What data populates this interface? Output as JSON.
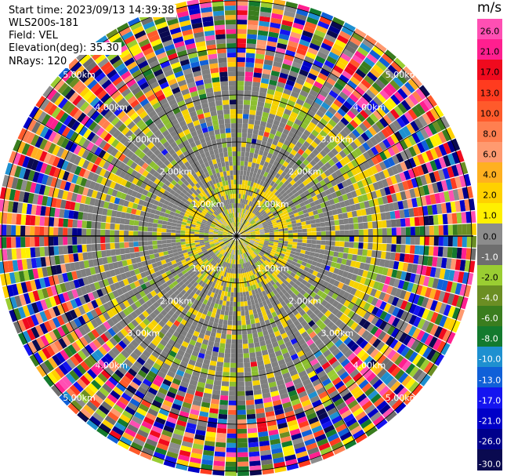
{
  "header": {
    "start_time": "Start time: 2023/09/13 14:39:38",
    "instrument": "WLS200s-181",
    "field": "Field: VEL",
    "elevation": "Elevation(deg): 35.30",
    "nrays": "NRays: 120"
  },
  "colorbar": {
    "unit": "m/s",
    "ticks": [
      "26.0",
      "21.0",
      "17.0",
      "13.0",
      "10.0",
      "8.0",
      "6.0",
      "4.0",
      "2.0",
      "1.0",
      "0.0",
      "-1.0",
      "-2.0",
      "-4.0",
      "-6.0",
      "-8.0",
      "-10.0",
      "-13.0",
      "-17.0",
      "-21.0",
      "-26.0",
      "-30.0"
    ],
    "colors": [
      "#ff4fb3",
      "#ff1f8f",
      "#f00a1e",
      "#ff3b1f",
      "#ff5a2b",
      "#ff7f50",
      "#ff9a70",
      "#ffb020",
      "#ffd100",
      "#fff000",
      "#8c8c8c",
      "#6e6e6e",
      "#9acd32",
      "#6b8e23",
      "#3a7d1e",
      "#137a2e",
      "#1e90d0",
      "#1060d8",
      "#1414f0",
      "#0000c8",
      "#00008b",
      "#0a0a50"
    ],
    "tick_text_colors": [
      "#000000",
      "#000000",
      "#000000",
      "#000000",
      "#000000",
      "#000000",
      "#000000",
      "#000000",
      "#000000",
      "#000000",
      "#000000",
      "#ffffff",
      "#000000",
      "#ffffff",
      "#ffffff",
      "#ffffff",
      "#ffffff",
      "#ffffff",
      "#ffffff",
      "#ffffff",
      "#ffffff",
      "#ffffff"
    ]
  },
  "map": {
    "range_rings": [
      "1.00km",
      "2.00km",
      "3.00km",
      "4.00km",
      "5.00km"
    ],
    "nrays": 120,
    "ring_label_color": "#ffffff"
  }
}
